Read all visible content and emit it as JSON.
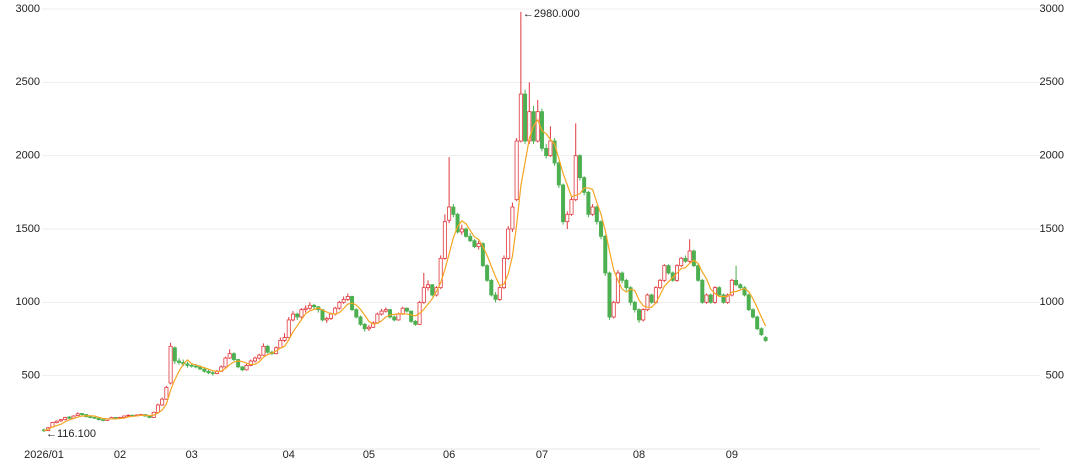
{
  "chart_data": {
    "type": "candlestick",
    "categories": [
      "2026/01",
      null,
      null,
      null,
      null,
      null,
      null,
      null,
      null,
      null,
      null,
      null,
      null,
      null,
      null,
      null,
      null,
      null,
      "02",
      null,
      null,
      null,
      null,
      null,
      null,
      null,
      null,
      null,
      null,
      null,
      null,
      null,
      null,
      null,
      null,
      "03",
      null,
      null,
      null,
      null,
      null,
      null,
      null,
      null,
      null,
      null,
      null,
      null,
      null,
      null,
      null,
      null,
      null,
      null,
      null,
      null,
      null,
      null,
      "04",
      null,
      null,
      null,
      null,
      null,
      null,
      null,
      null,
      null,
      null,
      null,
      null,
      null,
      null,
      null,
      null,
      null,
      null,
      "05",
      null,
      null,
      null,
      null,
      null,
      null,
      null,
      null,
      null,
      null,
      null,
      null,
      null,
      null,
      null,
      null,
      null,
      null,
      "06",
      null,
      null,
      null,
      null,
      null,
      null,
      null,
      null,
      null,
      null,
      null,
      null,
      null,
      null,
      null,
      null,
      null,
      null,
      null,
      null,
      null,
      "07",
      null,
      null,
      null,
      null,
      null,
      null,
      null,
      null,
      null,
      null,
      null,
      null,
      null,
      null,
      null,
      null,
      null,
      null,
      null,
      null,
      null,
      null,
      "08",
      null,
      null,
      null,
      null,
      null,
      null,
      null,
      null,
      null,
      null,
      null,
      null,
      null,
      null,
      null,
      null,
      null,
      null,
      null,
      null,
      null,
      "09",
      null,
      null,
      null,
      null,
      null,
      null,
      null,
      null
    ],
    "ohlc": [
      [
        130,
        140,
        116.1,
        125
      ],
      [
        125,
        150,
        122,
        145
      ],
      [
        150,
        185,
        148,
        180
      ],
      [
        180,
        195,
        175,
        190
      ],
      [
        192,
        205,
        185,
        200
      ],
      [
        200,
        220,
        195,
        215
      ],
      [
        218,
        225,
        205,
        210
      ],
      [
        210,
        230,
        208,
        225
      ],
      [
        228,
        250,
        225,
        240
      ],
      [
        242,
        245,
        228,
        235
      ],
      [
        235,
        238,
        215,
        220
      ],
      [
        220,
        225,
        210,
        215
      ],
      [
        215,
        218,
        205,
        210
      ],
      [
        210,
        212,
        195,
        200
      ],
      [
        200,
        205,
        188,
        195
      ],
      [
        195,
        210,
        192,
        205
      ],
      [
        205,
        220,
        202,
        215
      ],
      [
        215,
        218,
        205,
        210
      ],
      [
        210,
        220,
        205,
        215
      ],
      [
        215,
        228,
        212,
        225
      ],
      [
        225,
        235,
        220,
        230
      ],
      [
        230,
        234,
        222,
        228
      ],
      [
        228,
        236,
        225,
        232
      ],
      [
        232,
        240,
        228,
        235
      ],
      [
        235,
        238,
        220,
        225
      ],
      [
        225,
        228,
        210,
        215
      ],
      [
        215,
        255,
        212,
        250
      ],
      [
        250,
        310,
        245,
        300
      ],
      [
        300,
        350,
        295,
        340
      ],
      [
        340,
        430,
        335,
        420
      ],
      [
        450,
        725,
        440,
        700
      ],
      [
        690,
        700,
        580,
        600
      ],
      [
        600,
        620,
        575,
        590
      ],
      [
        590,
        610,
        565,
        580
      ],
      [
        580,
        595,
        555,
        570
      ],
      [
        570,
        585,
        555,
        565
      ],
      [
        565,
        580,
        550,
        560
      ],
      [
        560,
        570,
        540,
        545
      ],
      [
        545,
        555,
        520,
        530
      ],
      [
        530,
        540,
        510,
        520
      ],
      [
        520,
        530,
        500,
        515
      ],
      [
        515,
        540,
        510,
        530
      ],
      [
        530,
        570,
        525,
        560
      ],
      [
        560,
        630,
        555,
        620
      ],
      [
        620,
        680,
        615,
        650
      ],
      [
        650,
        660,
        600,
        610
      ],
      [
        610,
        615,
        550,
        560
      ],
      [
        560,
        565,
        530,
        540
      ],
      [
        540,
        580,
        535,
        570
      ],
      [
        570,
        610,
        565,
        600
      ],
      [
        600,
        630,
        590,
        620
      ],
      [
        620,
        650,
        610,
        640
      ],
      [
        640,
        720,
        635,
        700
      ],
      [
        700,
        710,
        650,
        660
      ],
      [
        660,
        670,
        640,
        650
      ],
      [
        650,
        700,
        645,
        690
      ],
      [
        690,
        760,
        685,
        740
      ],
      [
        740,
        790,
        730,
        760
      ],
      [
        760,
        900,
        755,
        880
      ],
      [
        880,
        940,
        870,
        920
      ],
      [
        920,
        930,
        880,
        900
      ],
      [
        900,
        960,
        890,
        950
      ],
      [
        950,
        980,
        930,
        960
      ],
      [
        960,
        1000,
        950,
        980
      ],
      [
        980,
        990,
        950,
        970
      ],
      [
        970,
        975,
        930,
        950
      ],
      [
        950,
        955,
        870,
        880
      ],
      [
        880,
        900,
        860,
        890
      ],
      [
        890,
        930,
        880,
        920
      ],
      [
        920,
        970,
        910,
        960
      ],
      [
        960,
        1010,
        950,
        1000
      ],
      [
        1000,
        1040,
        990,
        1020
      ],
      [
        1020,
        1060,
        1010,
        1040
      ],
      [
        1040,
        1045,
        940,
        950
      ],
      [
        950,
        960,
        890,
        900
      ],
      [
        900,
        910,
        840,
        850
      ],
      [
        850,
        860,
        800,
        820
      ],
      [
        820,
        845,
        805,
        830
      ],
      [
        830,
        870,
        825,
        860
      ],
      [
        860,
        930,
        855,
        920
      ],
      [
        920,
        955,
        910,
        940
      ],
      [
        940,
        965,
        930,
        950
      ],
      [
        950,
        955,
        890,
        900
      ],
      [
        900,
        910,
        870,
        880
      ],
      [
        880,
        930,
        875,
        920
      ],
      [
        920,
        970,
        915,
        960
      ],
      [
        960,
        965,
        930,
        940
      ],
      [
        940,
        945,
        860,
        870
      ],
      [
        870,
        880,
        840,
        850
      ],
      [
        850,
        1010,
        845,
        1000
      ],
      [
        1000,
        1200,
        990,
        1100
      ],
      [
        1100,
        1150,
        1080,
        1120
      ],
      [
        1120,
        1125,
        1040,
        1050
      ],
      [
        1050,
        1110,
        1040,
        1100
      ],
      [
        1100,
        1320,
        1090,
        1300
      ],
      [
        1300,
        1600,
        1290,
        1550
      ],
      [
        1560,
        1990,
        1540,
        1650
      ],
      [
        1650,
        1670,
        1580,
        1600
      ],
      [
        1600,
        1610,
        1470,
        1480
      ],
      [
        1480,
        1530,
        1460,
        1500
      ],
      [
        1500,
        1510,
        1440,
        1450
      ],
      [
        1450,
        1470,
        1410,
        1420
      ],
      [
        1420,
        1430,
        1370,
        1380
      ],
      [
        1380,
        1420,
        1360,
        1400
      ],
      [
        1400,
        1410,
        1240,
        1250
      ],
      [
        1250,
        1260,
        1140,
        1150
      ],
      [
        1150,
        1160,
        1040,
        1050
      ],
      [
        1050,
        1070,
        1000,
        1020
      ],
      [
        1020,
        1110,
        1010,
        1100
      ],
      [
        1100,
        1320,
        1090,
        1300
      ],
      [
        1300,
        1520,
        1290,
        1500
      ],
      [
        1500,
        1680,
        1480,
        1650
      ],
      [
        1700,
        2120,
        1690,
        2100
      ],
      [
        2100,
        2980,
        2090,
        2420
      ],
      [
        2420,
        2450,
        2080,
        2100
      ],
      [
        2100,
        2500,
        2080,
        2300
      ],
      [
        2300,
        2340,
        2080,
        2100
      ],
      [
        2100,
        2380,
        2090,
        2300
      ],
      [
        2300,
        2320,
        2030,
        2050
      ],
      [
        2050,
        2080,
        1980,
        2000
      ],
      [
        2000,
        2200,
        1990,
        2100
      ],
      [
        2100,
        2120,
        1930,
        1950
      ],
      [
        1950,
        1960,
        1780,
        1800
      ],
      [
        1800,
        1810,
        1530,
        1550
      ],
      [
        1550,
        1620,
        1500,
        1600
      ],
      [
        1600,
        1720,
        1590,
        1700
      ],
      [
        1700,
        2220,
        1690,
        2000
      ],
      [
        2000,
        2010,
        1830,
        1850
      ],
      [
        1850,
        1860,
        1730,
        1750
      ],
      [
        1750,
        1760,
        1580,
        1600
      ],
      [
        1600,
        1670,
        1590,
        1650
      ],
      [
        1650,
        1660,
        1530,
        1550
      ],
      [
        1550,
        1560,
        1430,
        1450
      ],
      [
        1450,
        1460,
        1180,
        1200
      ],
      [
        1200,
        1210,
        880,
        900
      ],
      [
        900,
        1010,
        890,
        1000
      ],
      [
        1000,
        1220,
        990,
        1200
      ],
      [
        1200,
        1210,
        1130,
        1150
      ],
      [
        1150,
        1160,
        1080,
        1100
      ],
      [
        1100,
        1110,
        980,
        1000
      ],
      [
        1000,
        1010,
        930,
        950
      ],
      [
        950,
        960,
        860,
        880
      ],
      [
        880,
        960,
        870,
        950
      ],
      [
        950,
        1060,
        940,
        1050
      ],
      [
        1050,
        1060,
        990,
        1000
      ],
      [
        1000,
        1110,
        990,
        1100
      ],
      [
        1100,
        1160,
        1090,
        1150
      ],
      [
        1150,
        1260,
        1140,
        1250
      ],
      [
        1250,
        1260,
        1190,
        1200
      ],
      [
        1200,
        1210,
        1140,
        1150
      ],
      [
        1150,
        1260,
        1140,
        1250
      ],
      [
        1250,
        1310,
        1240,
        1300
      ],
      [
        1300,
        1320,
        1270,
        1280
      ],
      [
        1280,
        1430,
        1270,
        1350
      ],
      [
        1350,
        1360,
        1240,
        1250
      ],
      [
        1250,
        1260,
        1140,
        1150
      ],
      [
        1150,
        1160,
        990,
        1000
      ],
      [
        1000,
        1060,
        990,
        1050
      ],
      [
        1050,
        1060,
        990,
        1000
      ],
      [
        1000,
        1110,
        990,
        1100
      ],
      [
        1100,
        1110,
        1040,
        1050
      ],
      [
        1050,
        1060,
        990,
        1000
      ],
      [
        1000,
        1060,
        990,
        1050
      ],
      [
        1050,
        1160,
        1040,
        1150
      ],
      [
        1150,
        1250,
        1110,
        1120
      ],
      [
        1120,
        1130,
        1090,
        1100
      ],
      [
        1100,
        1110,
        1040,
        1050
      ],
      [
        1050,
        1060,
        940,
        950
      ],
      [
        950,
        960,
        890,
        900
      ],
      [
        900,
        910,
        810,
        820
      ],
      [
        820,
        830,
        770,
        780
      ],
      [
        760,
        770,
        730,
        740
      ]
    ],
    "ma": {
      "color": "#f5a623",
      "values": [
        125,
        135,
        150,
        160,
        168,
        186,
        199,
        208,
        218,
        225,
        226,
        227,
        224,
        216,
        208,
        205,
        205,
        205,
        208,
        210,
        219,
        222,
        226,
        230,
        230,
        227,
        231,
        245,
        266,
        305,
        402,
        472,
        530,
        578,
        608,
        581,
        573,
        564,
        554,
        544,
        534,
        528,
        531,
        549,
        575,
        594,
        600,
        596,
        586,
        576,
        578,
        594,
        626,
        644,
        654,
        668,
        688,
        700,
        744,
        798,
        840,
        882,
        922,
        942,
        952,
        962,
        948,
        934,
        922,
        920,
        930,
        958,
        988,
        994,
        982,
        952,
        912,
        870,
        852,
        856,
        874,
        900,
        914,
        918,
        922,
        922,
        920,
        914,
        908,
        924,
        952,
        988,
        1024,
        1074,
        1134,
        1224,
        1330,
        1440,
        1516,
        1556,
        1536,
        1490,
        1446,
        1430,
        1380,
        1320,
        1246,
        1174,
        1114,
        1124,
        1194,
        1314,
        1530,
        1794,
        1954,
        2114,
        2204,
        2244,
        2170,
        2150,
        2110,
        2080,
        1980,
        1880,
        1800,
        1720,
        1730,
        1740,
        1780,
        1780,
        1770,
        1680,
        1600,
        1490,
        1350,
        1220,
        1150,
        1090,
        1070,
        1090,
        1080,
        1016,
        976,
        966,
        966,
        996,
        1050,
        1110,
        1140,
        1170,
        1200,
        1230,
        1236,
        1266,
        1286,
        1266,
        1206,
        1160,
        1090,
        1060,
        1040,
        1040,
        1040,
        1070,
        1074,
        1084,
        1094,
        1074,
        1024,
        964,
        900,
        838
      ]
    },
    "up_color": "#e0393e",
    "down_color": "#4caf50",
    "ylim": [
      0,
      3000
    ],
    "yticks": [
      500,
      1000,
      1500,
      2000,
      2500,
      3000
    ],
    "grid": true,
    "annotations": [
      {
        "label": "←2980.000",
        "value": 2980,
        "index": 113
      },
      {
        "label": "←116.100",
        "value": 116.1,
        "index": 0
      }
    ]
  }
}
